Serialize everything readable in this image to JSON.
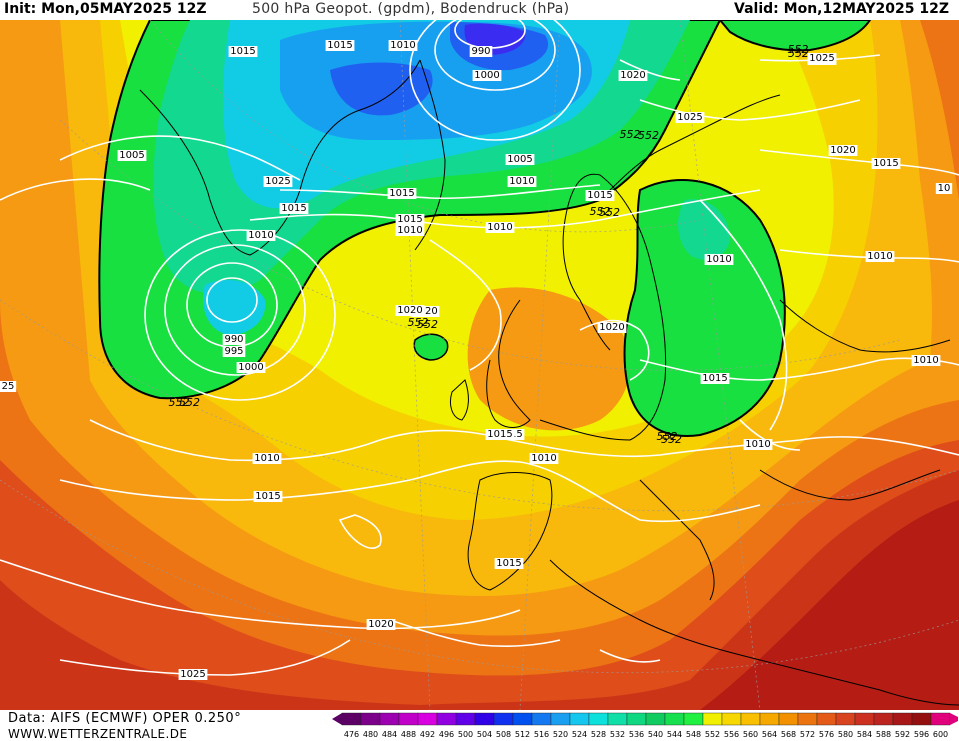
{
  "header": {
    "init": "Init: Mon,05MAY2025 12Z",
    "title": "500 hPa Geopot. (gpdm), Bodendruck (hPa)",
    "valid": "Valid: Mon,12MAY2025 12Z"
  },
  "footer": {
    "source": "Data: AIFS (ECMWF) OPER 0.250°",
    "website": "WWW.WETTERZENTRALE.DE"
  },
  "scale": {
    "labels": [
      "476",
      "480",
      "484",
      "488",
      "492",
      "496",
      "500",
      "504",
      "508",
      "512",
      "516",
      "520",
      "524",
      "528",
      "532",
      "536",
      "540",
      "544",
      "548",
      "552",
      "556",
      "560",
      "564",
      "568",
      "572",
      "576",
      "580",
      "584",
      "588",
      "592",
      "596",
      "600"
    ],
    "colors": [
      "#5c0066",
      "#7a0089",
      "#9c00b0",
      "#c000c8",
      "#d800e0",
      "#9000e0",
      "#6000e8",
      "#3000e6",
      "#1030f0",
      "#0050f0",
      "#1478f0",
      "#1a9ef0",
      "#15c6ee",
      "#0ee0dc",
      "#10e0a8",
      "#10d880",
      "#10cc60",
      "#16e050",
      "#20f040",
      "#f0f000",
      "#f6d800",
      "#f8c000",
      "#f5a800",
      "#f29000",
      "#ec7410",
      "#e45a18",
      "#d84420",
      "#cc3020",
      "#bc2420",
      "#a81818",
      "#941010",
      "#e0007c"
    ]
  },
  "map_layers": {
    "colors": {
      "deep_red": "#b41c14",
      "red": "#cc3418",
      "red_orange": "#de4d1a",
      "orange": "#ec7414",
      "light_orange": "#f59a12",
      "amber": "#f8b80c",
      "gold": "#f6d000",
      "yellow": "#f0f000",
      "green": "#18e040",
      "teal_green": "#12d890",
      "cyan": "#12cce6",
      "light_blue": "#18a0f0",
      "blue": "#2060f0",
      "indigo": "#3a2cf0",
      "isobar": "#ffffff",
      "coast": "#000000",
      "contour_552": "#000000"
    }
  },
  "pressure_labels": [
    "1015",
    "1015",
    "1010",
    "990",
    "1000",
    "1020",
    "1020",
    "1025",
    "1015",
    "1010",
    "1005",
    "1010",
    "1015",
    "1005",
    "990",
    "995",
    "1000",
    "1020",
    "1025",
    "1015",
    "1010",
    "552",
    "1015",
    "1010",
    "1020",
    "1010",
    "1015",
    "552",
    "1010",
    "1020",
    "1015",
    "1010",
    "552",
    "1010",
    "1015",
    "1020",
    "1015",
    "1025",
    "1010",
    "552",
    "1020",
    "1010",
    "552",
    "552",
    "1015",
    "1015",
    "1025",
    "25",
    "10"
  ]
}
